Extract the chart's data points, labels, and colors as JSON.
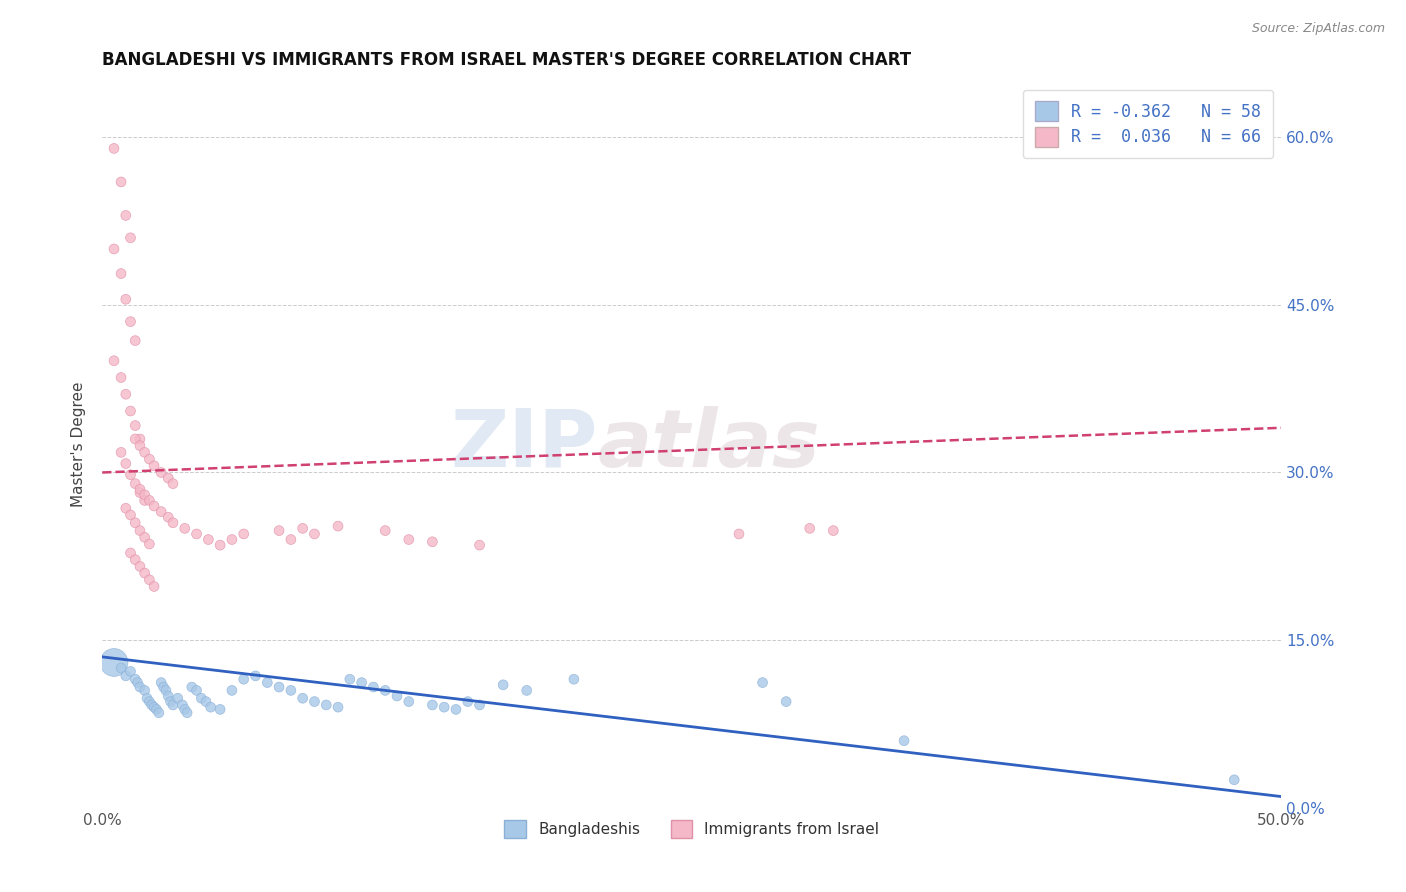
{
  "title": "BANGLADESHI VS IMMIGRANTS FROM ISRAEL MASTER'S DEGREE CORRELATION CHART",
  "source": "Source: ZipAtlas.com",
  "ylabel": "Master's Degree",
  "xlim": [
    0.0,
    0.5
  ],
  "ylim": [
    0.0,
    0.65
  ],
  "x_ticks": [
    0.0,
    0.1,
    0.2,
    0.3,
    0.4,
    0.5
  ],
  "x_tick_labels": [
    "0.0%",
    "",
    "",
    "",
    "",
    "50.0%"
  ],
  "y_ticks_right": [
    0.0,
    0.15,
    0.3,
    0.45,
    0.6
  ],
  "y_tick_labels_right": [
    "0.0%",
    "15.0%",
    "30.0%",
    "45.0%",
    "60.0%"
  ],
  "legend_r1": "R = -0.362",
  "legend_n1": "N = 58",
  "legend_r2": "R =  0.036",
  "legend_n2": "N = 66",
  "color_blue": "#a8c8e8",
  "color_pink": "#f5b8c8",
  "line_color_blue": "#3060c0",
  "line_color_pink": "#d04070",
  "watermark1": "ZIP",
  "watermark2": "atlas",
  "blue_scatter": [
    [
      0.005,
      0.13
    ],
    [
      0.008,
      0.125
    ],
    [
      0.01,
      0.118
    ],
    [
      0.012,
      0.122
    ],
    [
      0.014,
      0.115
    ],
    [
      0.015,
      0.112
    ],
    [
      0.016,
      0.108
    ],
    [
      0.018,
      0.105
    ],
    [
      0.019,
      0.098
    ],
    [
      0.02,
      0.095
    ],
    [
      0.021,
      0.092
    ],
    [
      0.022,
      0.09
    ],
    [
      0.023,
      0.088
    ],
    [
      0.024,
      0.085
    ],
    [
      0.025,
      0.112
    ],
    [
      0.026,
      0.108
    ],
    [
      0.027,
      0.105
    ],
    [
      0.028,
      0.1
    ],
    [
      0.029,
      0.095
    ],
    [
      0.03,
      0.092
    ],
    [
      0.032,
      0.098
    ],
    [
      0.034,
      0.092
    ],
    [
      0.035,
      0.088
    ],
    [
      0.036,
      0.085
    ],
    [
      0.038,
      0.108
    ],
    [
      0.04,
      0.105
    ],
    [
      0.042,
      0.098
    ],
    [
      0.044,
      0.095
    ],
    [
      0.046,
      0.09
    ],
    [
      0.05,
      0.088
    ],
    [
      0.055,
      0.105
    ],
    [
      0.06,
      0.115
    ],
    [
      0.065,
      0.118
    ],
    [
      0.07,
      0.112
    ],
    [
      0.075,
      0.108
    ],
    [
      0.08,
      0.105
    ],
    [
      0.085,
      0.098
    ],
    [
      0.09,
      0.095
    ],
    [
      0.095,
      0.092
    ],
    [
      0.1,
      0.09
    ],
    [
      0.105,
      0.115
    ],
    [
      0.11,
      0.112
    ],
    [
      0.115,
      0.108
    ],
    [
      0.12,
      0.105
    ],
    [
      0.125,
      0.1
    ],
    [
      0.13,
      0.095
    ],
    [
      0.14,
      0.092
    ],
    [
      0.145,
      0.09
    ],
    [
      0.15,
      0.088
    ],
    [
      0.155,
      0.095
    ],
    [
      0.16,
      0.092
    ],
    [
      0.17,
      0.11
    ],
    [
      0.18,
      0.105
    ],
    [
      0.2,
      0.115
    ],
    [
      0.28,
      0.112
    ],
    [
      0.29,
      0.095
    ],
    [
      0.34,
      0.06
    ],
    [
      0.48,
      0.025
    ]
  ],
  "blue_sizes": [
    400,
    50,
    50,
    50,
    50,
    50,
    50,
    50,
    50,
    50,
    50,
    50,
    50,
    50,
    50,
    50,
    50,
    50,
    50,
    50,
    50,
    50,
    50,
    50,
    50,
    50,
    50,
    50,
    50,
    50,
    50,
    50,
    50,
    50,
    50,
    50,
    50,
    50,
    50,
    50,
    50,
    50,
    50,
    50,
    50,
    50,
    50,
    50,
    50,
    50,
    50,
    50,
    50,
    50,
    50,
    50,
    50,
    50
  ],
  "pink_scatter": [
    [
      0.005,
      0.59
    ],
    [
      0.008,
      0.56
    ],
    [
      0.01,
      0.53
    ],
    [
      0.012,
      0.51
    ],
    [
      0.005,
      0.5
    ],
    [
      0.008,
      0.478
    ],
    [
      0.01,
      0.455
    ],
    [
      0.012,
      0.435
    ],
    [
      0.014,
      0.418
    ],
    [
      0.005,
      0.4
    ],
    [
      0.008,
      0.385
    ],
    [
      0.01,
      0.37
    ],
    [
      0.012,
      0.355
    ],
    [
      0.014,
      0.342
    ],
    [
      0.016,
      0.33
    ],
    [
      0.008,
      0.318
    ],
    [
      0.01,
      0.308
    ],
    [
      0.012,
      0.298
    ],
    [
      0.014,
      0.29
    ],
    [
      0.016,
      0.282
    ],
    [
      0.018,
      0.275
    ],
    [
      0.01,
      0.268
    ],
    [
      0.012,
      0.262
    ],
    [
      0.014,
      0.255
    ],
    [
      0.016,
      0.248
    ],
    [
      0.018,
      0.242
    ],
    [
      0.02,
      0.236
    ],
    [
      0.012,
      0.228
    ],
    [
      0.014,
      0.222
    ],
    [
      0.016,
      0.216
    ],
    [
      0.018,
      0.21
    ],
    [
      0.02,
      0.204
    ],
    [
      0.022,
      0.198
    ],
    [
      0.014,
      0.33
    ],
    [
      0.016,
      0.324
    ],
    [
      0.018,
      0.318
    ],
    [
      0.02,
      0.312
    ],
    [
      0.022,
      0.306
    ],
    [
      0.025,
      0.3
    ],
    [
      0.028,
      0.295
    ],
    [
      0.03,
      0.29
    ],
    [
      0.016,
      0.285
    ],
    [
      0.018,
      0.28
    ],
    [
      0.02,
      0.275
    ],
    [
      0.022,
      0.27
    ],
    [
      0.025,
      0.265
    ],
    [
      0.028,
      0.26
    ],
    [
      0.03,
      0.255
    ],
    [
      0.035,
      0.25
    ],
    [
      0.04,
      0.245
    ],
    [
      0.045,
      0.24
    ],
    [
      0.05,
      0.235
    ],
    [
      0.055,
      0.24
    ],
    [
      0.06,
      0.245
    ],
    [
      0.075,
      0.248
    ],
    [
      0.08,
      0.24
    ],
    [
      0.085,
      0.25
    ],
    [
      0.09,
      0.245
    ],
    [
      0.1,
      0.252
    ],
    [
      0.12,
      0.248
    ],
    [
      0.13,
      0.24
    ],
    [
      0.14,
      0.238
    ],
    [
      0.16,
      0.235
    ],
    [
      0.27,
      0.245
    ],
    [
      0.3,
      0.25
    ],
    [
      0.31,
      0.248
    ]
  ],
  "pink_sizes": [
    50,
    50,
    50,
    50,
    50,
    50,
    50,
    50,
    50,
    50,
    50,
    50,
    50,
    50,
    50,
    50,
    50,
    50,
    50,
    50,
    50,
    50,
    50,
    50,
    50,
    50,
    50,
    50,
    50,
    50,
    50,
    50,
    50,
    50,
    50,
    50,
    50,
    50,
    50,
    50,
    50,
    50,
    50,
    50,
    50,
    50,
    50,
    50,
    50,
    50,
    50,
    50,
    50,
    50,
    50,
    50,
    50,
    50,
    50,
    50,
    50,
    50,
    50,
    50,
    50,
    50
  ],
  "blue_line_x": [
    0.0,
    0.5
  ],
  "blue_line_y": [
    0.135,
    0.01
  ],
  "pink_line_x": [
    0.0,
    0.5
  ],
  "pink_line_y": [
    0.3,
    0.34
  ]
}
